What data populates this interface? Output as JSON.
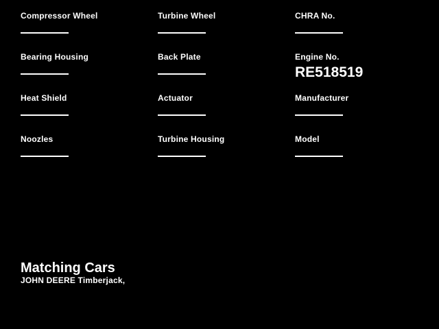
{
  "page": {
    "background_color": "#000000",
    "text_color": "#ffffff"
  },
  "form": {
    "columns": [
      {
        "fields": [
          {
            "label": "Compressor Wheel",
            "value": ""
          },
          {
            "label": "Bearing Housing",
            "value": ""
          },
          {
            "label": "Heat Shield",
            "value": ""
          },
          {
            "label": "Noozles",
            "value": ""
          }
        ]
      },
      {
        "fields": [
          {
            "label": "Turbine Wheel",
            "value": ""
          },
          {
            "label": "Back Plate",
            "value": ""
          },
          {
            "label": "Actuator",
            "value": ""
          },
          {
            "label": "Turbine Housing",
            "value": ""
          }
        ]
      },
      {
        "fields": [
          {
            "label": "CHRA No.",
            "value": ""
          },
          {
            "label": "Engine No.",
            "value": "RE518519"
          },
          {
            "label": "Manufacturer",
            "value": ""
          },
          {
            "label": "Model",
            "value": ""
          }
        ]
      }
    ]
  },
  "footer": {
    "title": "Matching Cars",
    "subtitle": "JOHN DEERE Timberjack,"
  }
}
